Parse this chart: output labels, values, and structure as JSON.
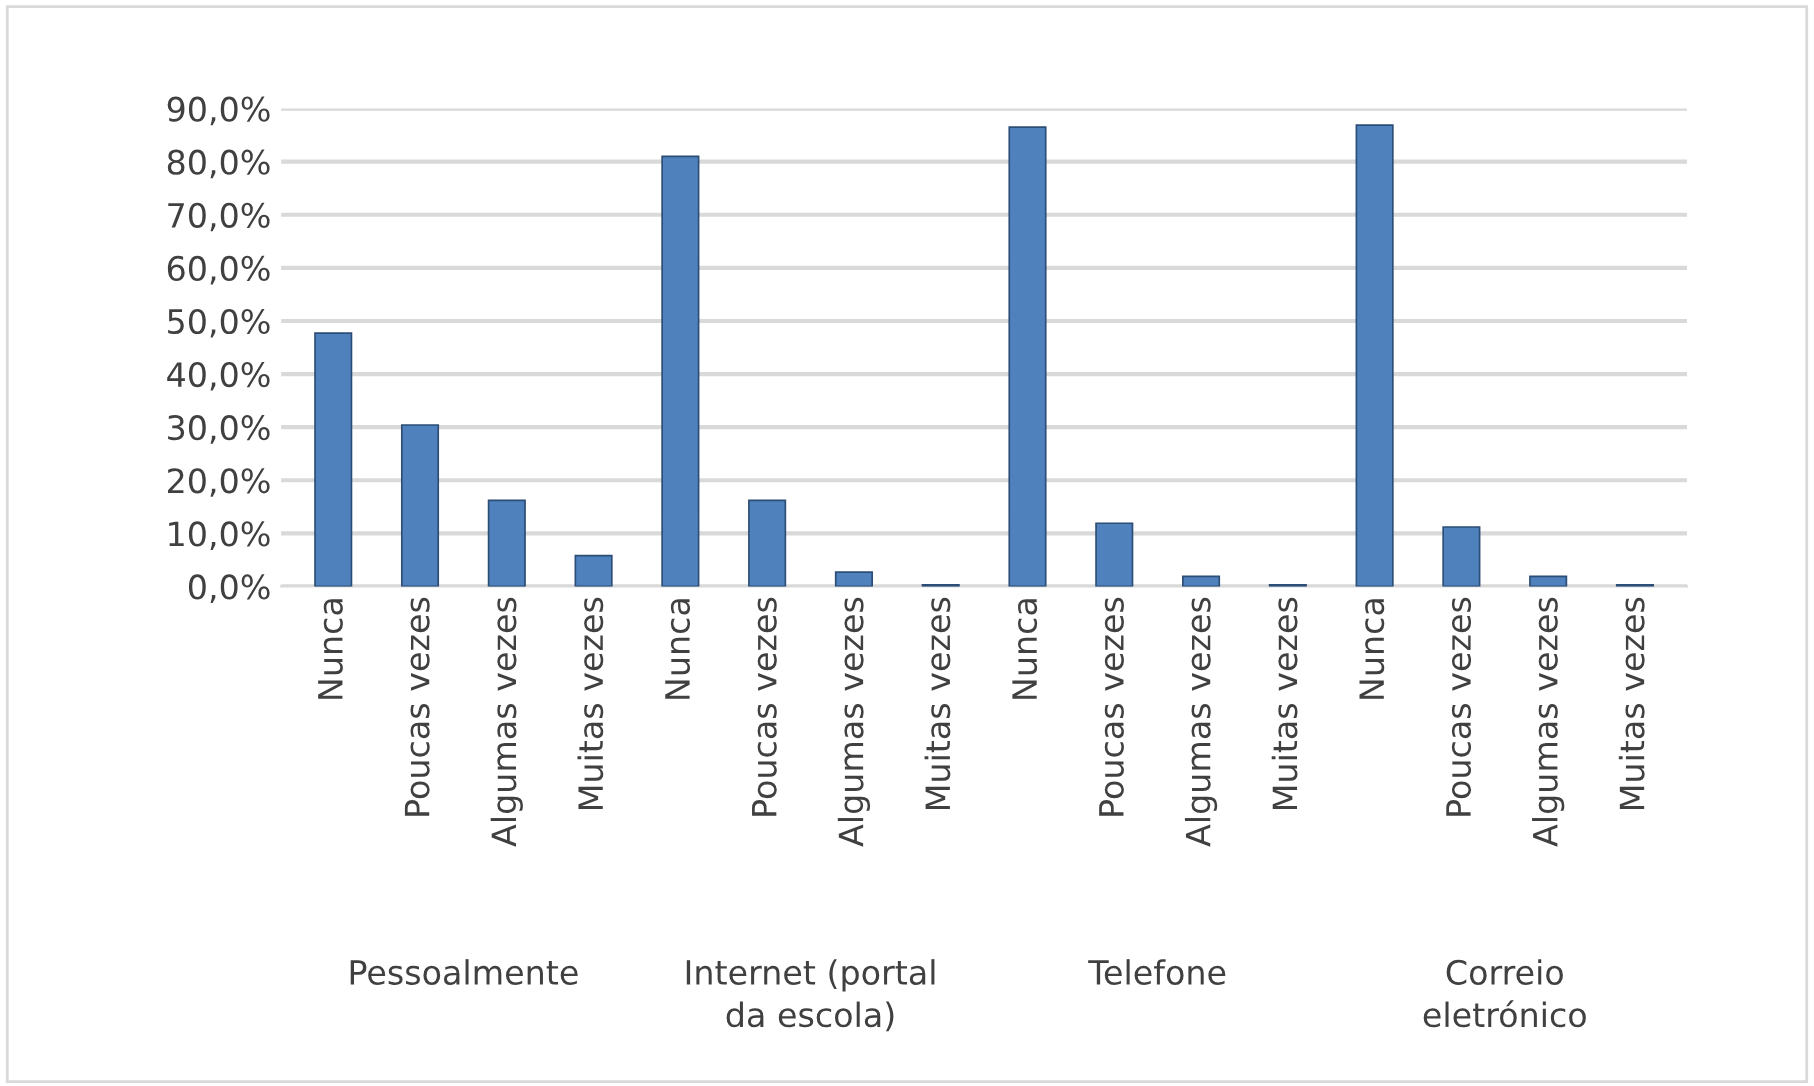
{
  "chart_data": {
    "type": "bar",
    "categories": [
      "Nunca",
      "Poucas vezes",
      "Algumas vezes",
      "Muitas vezes",
      "Nunca",
      "Poucas vezes",
      "Algumas vezes",
      "Muitas vezes",
      "Nunca",
      "Poucas vezes",
      "Algumas vezes",
      "Muitas vezes",
      "Nunca",
      "Poucas vezes",
      "Algumas vezes",
      "Muitas vezes"
    ],
    "values": [
      47.7,
      30.4,
      16.2,
      5.8,
      81.0,
      16.2,
      2.7,
      0.3,
      86.5,
      11.9,
      1.9,
      0.3,
      86.9,
      11.2,
      1.9,
      0.3
    ],
    "color": "#4f81bd",
    "ylim": [
      0,
      90
    ],
    "yticks": [
      {
        "value": 0,
        "label": "0,0%"
      },
      {
        "value": 10,
        "label": "10,0%"
      },
      {
        "value": 20,
        "label": "20,0%"
      },
      {
        "value": 30,
        "label": "30,0%"
      },
      {
        "value": 40,
        "label": "40,0%"
      },
      {
        "value": 50,
        "label": "50,0%"
      },
      {
        "value": 60,
        "label": "60,0%"
      },
      {
        "value": 70,
        "label": "70,0%"
      },
      {
        "value": 80,
        "label": "80,0%"
      },
      {
        "value": 90,
        "label": "90,0%"
      }
    ],
    "grid": "y",
    "annotations": [
      "Pessoalmente",
      "Internet (portal\nda escola)",
      "Telefone",
      "Correio\neletrónico"
    ]
  }
}
